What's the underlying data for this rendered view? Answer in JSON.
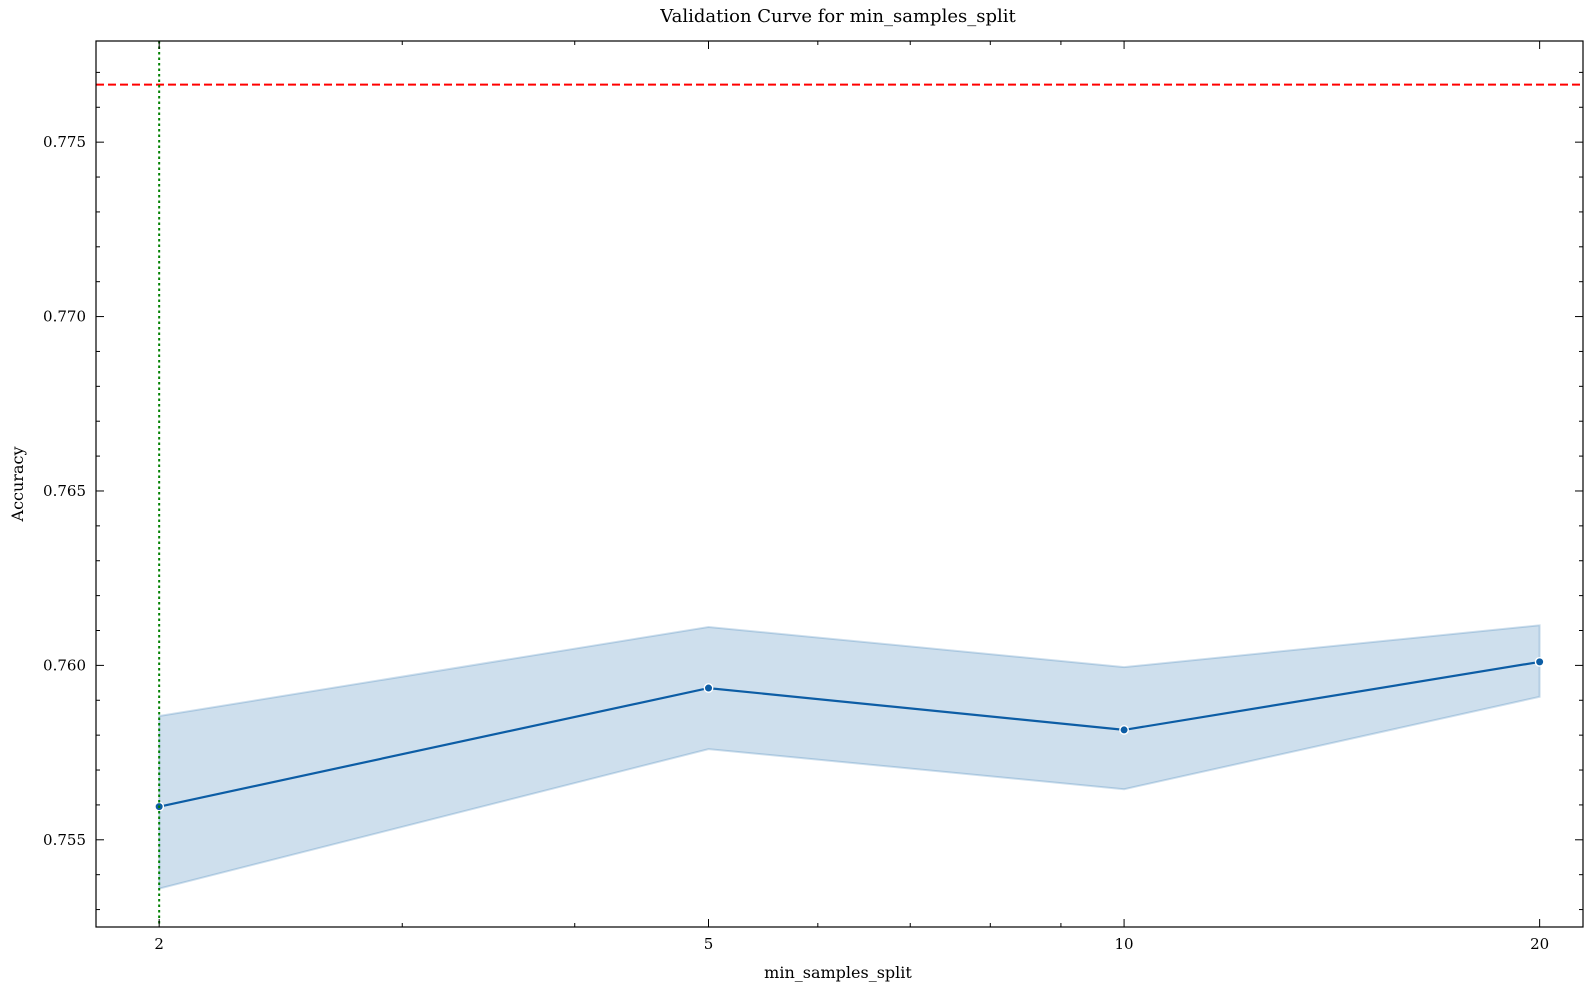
{
  "chart_data": {
    "type": "line",
    "title": "Validation Curve for min_samples_split",
    "xlabel": "min_samples_split",
    "ylabel": "Accuracy",
    "xscale": "log",
    "xlim": [
      1.8,
      21.5
    ],
    "ylim": [
      0.7525,
      0.7779
    ],
    "xticks": [
      2,
      5,
      10,
      20
    ],
    "xtick_labels": [
      "2",
      "5",
      "10",
      "20"
    ],
    "yticks": [
      0.755,
      0.76,
      0.765,
      0.77,
      0.775
    ],
    "ytick_labels": [
      "0.755",
      "0.760",
      "0.765",
      "0.770",
      "0.775"
    ],
    "grid": false,
    "series": [
      {
        "x": [
          2,
          5,
          10,
          20
        ],
        "values": [
          0.75595,
          0.75935,
          0.75815,
          0.7601
        ],
        "lower": [
          0.7536,
          0.7576,
          0.75645,
          0.7591
        ],
        "upper": [
          0.75855,
          0.7611,
          0.75995,
          0.76115
        ],
        "color": "#0C5DA5",
        "band_color": "#0C5DA5"
      }
    ],
    "reference_lines": [
      {
        "orientation": "horizontal",
        "value": 0.77665,
        "style": "dashed",
        "color": "#FF0000"
      },
      {
        "orientation": "vertical",
        "value": 2,
        "style": "dotted",
        "color": "#008000"
      }
    ]
  }
}
